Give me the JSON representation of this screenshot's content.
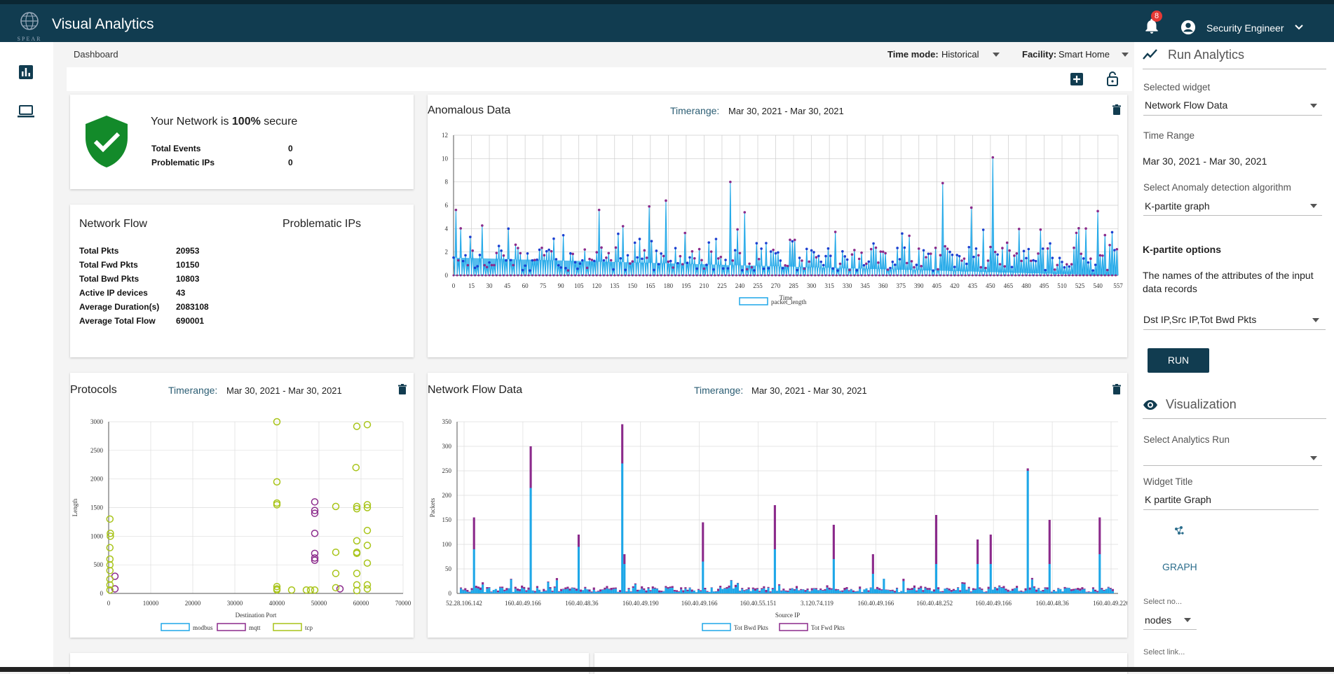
{
  "app": {
    "title": "Visual Analytics",
    "logo_text": "SPEAR",
    "notification_count": "8",
    "user": "Security Engineer"
  },
  "breadcrumb": "Dashboard",
  "filters": {
    "time_mode_label": "Time mode:",
    "time_mode_value": "Historical",
    "facility_label": "Facility:",
    "facility_value": "Smart Home"
  },
  "security": {
    "text_pre": "Your Network is ",
    "text_pct": "100%",
    "text_post": " secure",
    "stats": [
      {
        "k": "Total Events",
        "v": "0"
      },
      {
        "k": "Problematic IPs",
        "v": "0"
      }
    ]
  },
  "network_flow": {
    "title": "Network Flow",
    "problematic_title": "Problematic IPs",
    "stats": [
      {
        "k": "Total Pkts",
        "v": "20953"
      },
      {
        "k": "Total Fwd Pkts",
        "v": "10150"
      },
      {
        "k": "Total Bwd Pkts",
        "v": "10803"
      },
      {
        "k": "Active IP devices",
        "v": "43"
      },
      {
        "k": "Average Duration(s)",
        "v": "2083108"
      },
      {
        "k": "Average Total Flow",
        "v": "690001"
      }
    ]
  },
  "timerange_label": "Timerange:",
  "timerange_value": "Mar 30, 2021 - Mar 30, 2021",
  "anomalous": {
    "title": "Anomalous Data"
  },
  "protocols": {
    "title": "Protocols"
  },
  "netflow_chart": {
    "title": "Network Flow Data"
  },
  "right_panel": {
    "run_title": "Run Analytics",
    "selected_widget_label": "Selected widget",
    "selected_widget_value": "Network Flow Data",
    "time_range_label": "Time Range",
    "time_range_value": "Mar 30, 2021 - Mar 30, 2021",
    "algo_label": "Select Anomaly detection algorithm",
    "algo_value": "K-partite graph",
    "kpartite_title": "K-partite options",
    "attrs_desc": "The names of the attributes of the input data records",
    "attrs_value": "Dst IP,Src IP,Tot Bwd Pkts",
    "run_label": "RUN",
    "viz_title": "Visualization",
    "analytics_run_label": "Select Analytics Run",
    "analytics_run_value": "",
    "widget_title_label": "Widget Title",
    "widget_title_value": "K partite Graph",
    "graph_label": "GRAPH",
    "select_nodes_label": "Select no...",
    "select_nodes_value": "nodes",
    "select_link_label": "Select link..."
  },
  "colors": {
    "primary": "#113c50",
    "blue": "#1ea7e8",
    "purple": "#8b2a8b",
    "green": "#a8c418",
    "shield": "#138a2a"
  },
  "chart_data": [
    {
      "type": "line",
      "title": "Anomalous Data",
      "xlabel": "Time",
      "ylabel": "",
      "ylim": [
        0,
        12
      ],
      "xlim": [
        0,
        557
      ],
      "x_ticks": [
        "0",
        "15",
        "30",
        "45",
        "60",
        "75",
        "90",
        "105",
        "120",
        "135",
        "150",
        "165",
        "180",
        "195",
        "210",
        "225",
        "240",
        "255",
        "270",
        "285",
        "300",
        "315",
        "330",
        "345",
        "360",
        "375",
        "390",
        "405",
        "420",
        "435",
        "450",
        "465",
        "480",
        "495",
        "510",
        "525",
        "540",
        "557"
      ],
      "y_ticks": [
        "0",
        "2",
        "4",
        "6",
        "8",
        "10",
        "12"
      ],
      "series": [
        {
          "name": "packet_length",
          "peaks": [
            [
              3,
              5.6
            ],
            [
              47,
              4.0
            ],
            [
              122,
              5.6
            ],
            [
              165,
              5.9
            ],
            [
              178,
              6.4
            ],
            [
              233,
              8.0
            ],
            [
              245,
              5.4
            ],
            [
              410,
              7.9
            ],
            [
              434,
              5.8
            ],
            [
              452,
              10.1
            ],
            [
              541,
              5.5
            ]
          ],
          "baseline": 0
        }
      ]
    },
    {
      "type": "scatter",
      "title": "Protocols",
      "xlabel": "Destination Port",
      "ylabel": "Length",
      "xlim": [
        0,
        70000
      ],
      "ylim": [
        0,
        3000
      ],
      "x_ticks": [
        "0",
        "10000",
        "20000",
        "30000",
        "40000",
        "50000",
        "60000",
        "70000"
      ],
      "y_ticks": [
        "0",
        "500",
        "1000",
        "1500",
        "2000",
        "2500",
        "3000"
      ],
      "series": [
        {
          "name": "modbus",
          "points": []
        },
        {
          "name": "mqtt",
          "points": [
            [
              1500,
              300
            ],
            [
              1500,
              80
            ],
            [
              49000,
              1600
            ],
            [
              49000,
              1450
            ],
            [
              49000,
              1400
            ],
            [
              49000,
              1050
            ],
            [
              49000,
              700
            ],
            [
              49000,
              620
            ],
            [
              49000,
              580
            ],
            [
              55000,
              80
            ]
          ]
        },
        {
          "name": "tcp",
          "points": [
            [
              300,
              1300
            ],
            [
              400,
              1050
            ],
            [
              400,
              1000
            ],
            [
              300,
              800
            ],
            [
              300,
              600
            ],
            [
              300,
              500
            ],
            [
              300,
              400
            ],
            [
              300,
              250
            ],
            [
              300,
              150
            ],
            [
              300,
              60
            ],
            [
              40000,
              3000
            ],
            [
              40000,
              1950
            ],
            [
              40000,
              1580
            ],
            [
              40000,
              1550
            ],
            [
              40000,
              120
            ],
            [
              40000,
              80
            ],
            [
              40000,
              60
            ],
            [
              43500,
              60
            ],
            [
              47000,
              60
            ],
            [
              48000,
              60
            ],
            [
              49000,
              60
            ],
            [
              54000,
              1520
            ],
            [
              54000,
              720
            ],
            [
              54000,
              350
            ],
            [
              54000,
              100
            ],
            [
              59000,
              2920
            ],
            [
              58800,
              2200
            ],
            [
              59000,
              1520
            ],
            [
              59000,
              1480
            ],
            [
              59000,
              920
            ],
            [
              59000,
              720
            ],
            [
              59000,
              700
            ],
            [
              59000,
              350
            ],
            [
              59000,
              150
            ],
            [
              59000,
              50
            ],
            [
              61500,
              2950
            ],
            [
              61500,
              1550
            ],
            [
              61500,
              1500
            ],
            [
              61500,
              1100
            ],
            [
              61500,
              840
            ],
            [
              61500,
              530
            ],
            [
              61500,
              150
            ],
            [
              61500,
              80
            ]
          ]
        }
      ]
    },
    {
      "type": "bar",
      "title": "Network Flow Data",
      "xlabel": "Source IP",
      "ylabel": "Packets",
      "ylim": [
        0,
        350
      ],
      "y_ticks": [
        "0",
        "50",
        "100",
        "150",
        "200",
        "250",
        "300",
        "350"
      ],
      "categories": [
        "52.28.106.142",
        "160.40.49.166",
        "160.40.48.36",
        "160.40.49.190",
        "160.40.49.166",
        "160.40.55.151",
        "3.120.74.119",
        "160.40.49.166",
        "160.40.48.252",
        "160.40.49.166",
        "160.40.48.36",
        "160.40.49.226"
      ],
      "series": [
        {
          "name": "Tot Bwd Pkts",
          "peaks": [
            [
              0.02,
              90
            ],
            [
              0.105,
              215
            ],
            [
              0.245,
              265
            ],
            [
              0.18,
              95
            ],
            [
              0.25,
              60
            ],
            [
              0.37,
              65
            ],
            [
              0.48,
              90
            ],
            [
              0.57,
              70
            ],
            [
              0.63,
              40
            ],
            [
              0.725,
              60
            ],
            [
              0.79,
              60
            ],
            [
              0.81,
              60
            ],
            [
              0.865,
              250
            ],
            [
              0.9,
              60
            ],
            [
              0.975,
              80
            ]
          ]
        },
        {
          "name": "Tot Fwd Pkts",
          "peaks": [
            [
              0.02,
              65
            ],
            [
              0.105,
              85
            ],
            [
              0.245,
              80
            ],
            [
              0.18,
              25
            ],
            [
              0.25,
              20
            ],
            [
              0.37,
              80
            ],
            [
              0.48,
              90
            ],
            [
              0.57,
              70
            ],
            [
              0.63,
              40
            ],
            [
              0.725,
              100
            ],
            [
              0.79,
              50
            ],
            [
              0.81,
              60
            ],
            [
              0.865,
              5
            ],
            [
              0.9,
              90
            ],
            [
              0.975,
              75
            ]
          ]
        }
      ]
    }
  ]
}
